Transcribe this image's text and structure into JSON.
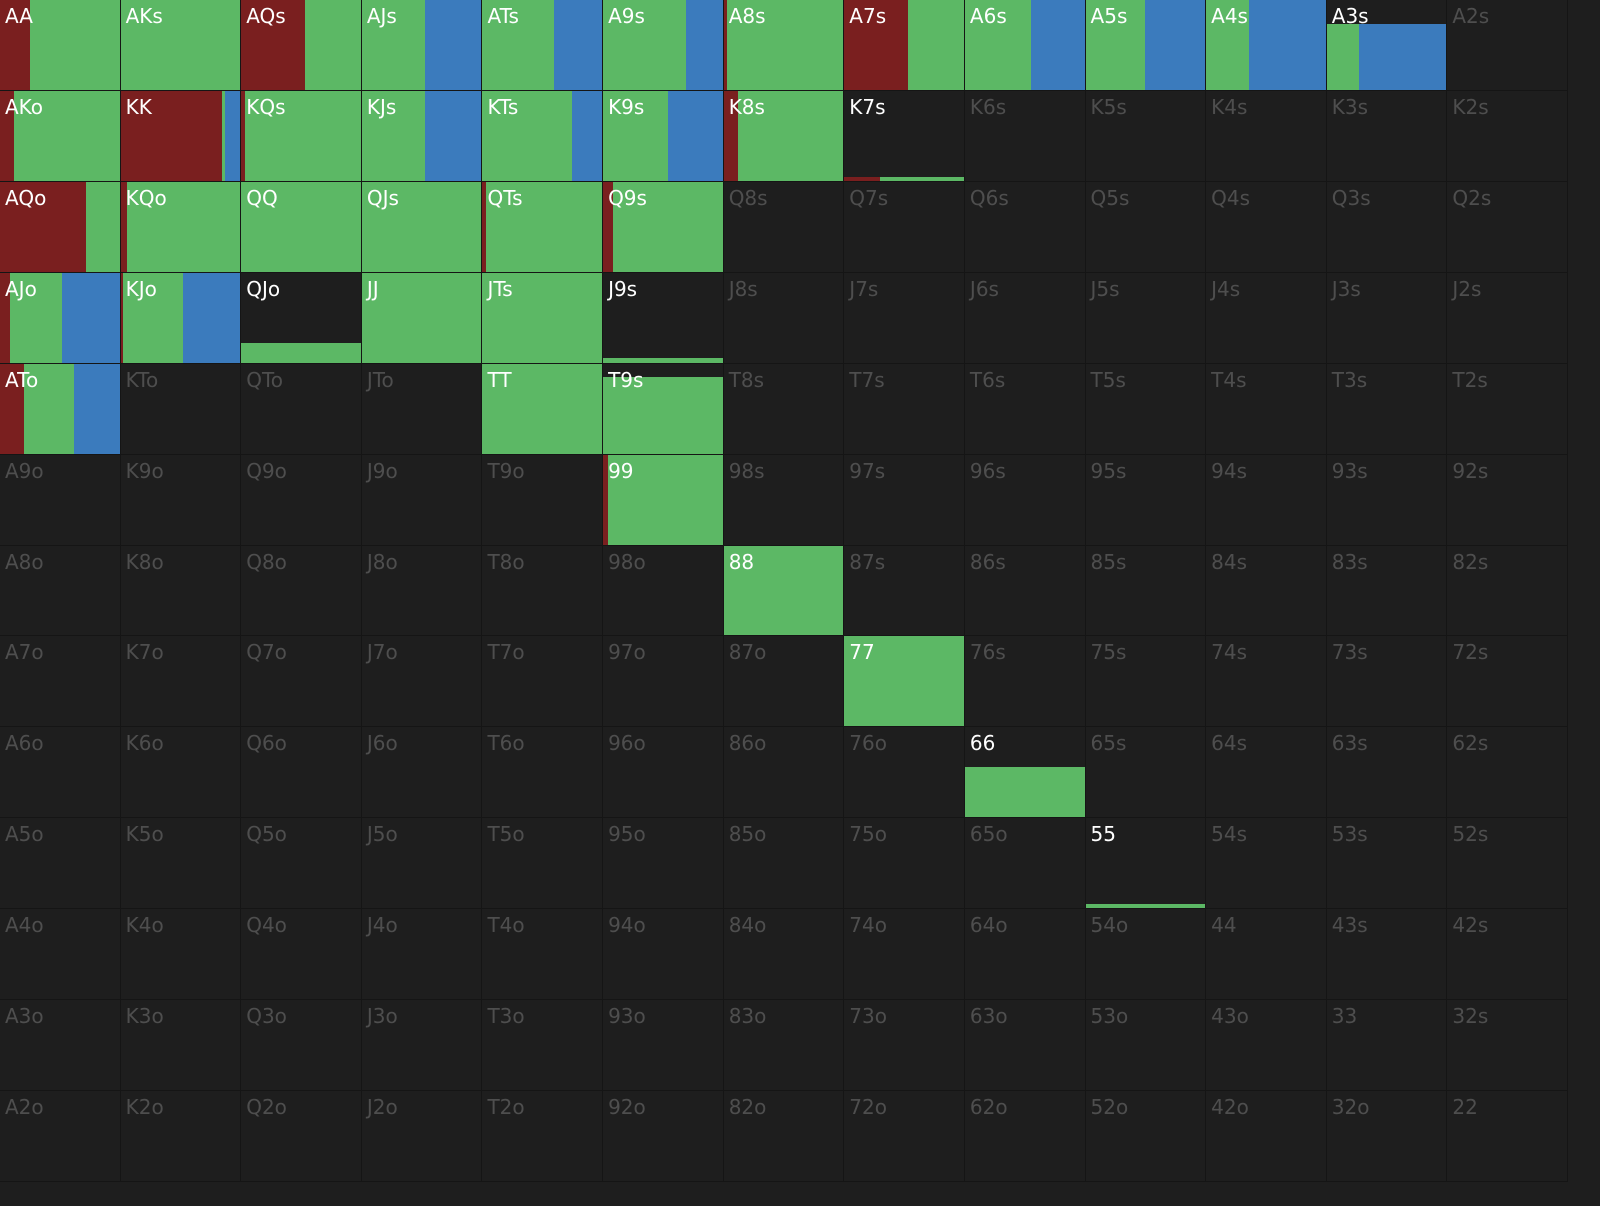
{
  "colors": {
    "raise": "#7a1f1f",
    "call": "#5cb865",
    "allin": "#3b7bbd",
    "empty": "#1e1e1e",
    "active_label": "#ffffff",
    "inactive_label": "#4e4e4e"
  },
  "ranks": [
    "A",
    "K",
    "Q",
    "J",
    "T",
    "9",
    "8",
    "7",
    "6",
    "5",
    "4",
    "3",
    "2"
  ],
  "hands": [
    {
      "label": "AA",
      "freq": 1,
      "mix": [
        0.25,
        0.75,
        0
      ]
    },
    {
      "label": "AKs",
      "freq": 1,
      "mix": [
        0,
        1,
        0
      ]
    },
    {
      "label": "AQs",
      "freq": 1,
      "mix": [
        0.53,
        0.47,
        0
      ]
    },
    {
      "label": "AJs",
      "freq": 1,
      "mix": [
        0,
        0.53,
        0.47
      ]
    },
    {
      "label": "ATs",
      "freq": 1,
      "mix": [
        0,
        0.6,
        0.4
      ]
    },
    {
      "label": "A9s",
      "freq": 1,
      "mix": [
        0,
        0.69,
        0.31
      ]
    },
    {
      "label": "A8s",
      "freq": 1,
      "mix": [
        0.03,
        0.97,
        0
      ]
    },
    {
      "label": "A7s",
      "freq": 1,
      "mix": [
        0.53,
        0.47,
        0
      ]
    },
    {
      "label": "A6s",
      "freq": 1,
      "mix": [
        0,
        0.55,
        0.45
      ]
    },
    {
      "label": "A5s",
      "freq": 1,
      "mix": [
        0,
        0.5,
        0.5
      ]
    },
    {
      "label": "A4s",
      "freq": 1,
      "mix": [
        0,
        0.36,
        0.64
      ]
    },
    {
      "label": "A3s",
      "freq": 0.73,
      "mix": [
        0,
        0.27,
        0.73
      ]
    },
    {
      "label": "A2s",
      "freq": 0,
      "mix": [
        0,
        0,
        0
      ]
    },
    {
      "label": "AKo",
      "freq": 1,
      "mix": [
        0.12,
        0.88,
        0
      ]
    },
    {
      "label": "KK",
      "freq": 1,
      "mix": [
        0.85,
        0.02,
        0.13
      ]
    },
    {
      "label": "KQs",
      "freq": 1,
      "mix": [
        0.03,
        0.97,
        0
      ]
    },
    {
      "label": "KJs",
      "freq": 1,
      "mix": [
        0,
        0.53,
        0.47
      ]
    },
    {
      "label": "KTs",
      "freq": 1,
      "mix": [
        0,
        0.75,
        0.25
      ]
    },
    {
      "label": "K9s",
      "freq": 1,
      "mix": [
        0,
        0.54,
        0.46
      ]
    },
    {
      "label": "K8s",
      "freq": 1,
      "mix": [
        0.12,
        0.88,
        0
      ]
    },
    {
      "label": "K7s",
      "freq": 0.04,
      "mix": [
        0.3,
        0.7,
        0
      ]
    },
    {
      "label": "K6s",
      "freq": 0,
      "mix": [
        0,
        0,
        0
      ]
    },
    {
      "label": "K5s",
      "freq": 0,
      "mix": [
        0,
        0,
        0
      ]
    },
    {
      "label": "K4s",
      "freq": 0,
      "mix": [
        0,
        0,
        0
      ]
    },
    {
      "label": "K3s",
      "freq": 0,
      "mix": [
        0,
        0,
        0
      ]
    },
    {
      "label": "K2s",
      "freq": 0,
      "mix": [
        0,
        0,
        0
      ]
    },
    {
      "label": "AQo",
      "freq": 1,
      "mix": [
        0.72,
        0.28,
        0
      ]
    },
    {
      "label": "KQo",
      "freq": 1,
      "mix": [
        0.05,
        0.95,
        0
      ]
    },
    {
      "label": "QQ",
      "freq": 1,
      "mix": [
        0,
        1,
        0
      ]
    },
    {
      "label": "QJs",
      "freq": 1,
      "mix": [
        0,
        1,
        0
      ]
    },
    {
      "label": "QTs",
      "freq": 1,
      "mix": [
        0.03,
        0.97,
        0
      ]
    },
    {
      "label": "Q9s",
      "freq": 1,
      "mix": [
        0.08,
        0.92,
        0
      ]
    },
    {
      "label": "Q8s",
      "freq": 0,
      "mix": [
        0,
        0,
        0
      ]
    },
    {
      "label": "Q7s",
      "freq": 0,
      "mix": [
        0,
        0,
        0
      ]
    },
    {
      "label": "Q6s",
      "freq": 0,
      "mix": [
        0,
        0,
        0
      ]
    },
    {
      "label": "Q5s",
      "freq": 0,
      "mix": [
        0,
        0,
        0
      ]
    },
    {
      "label": "Q4s",
      "freq": 0,
      "mix": [
        0,
        0,
        0
      ]
    },
    {
      "label": "Q3s",
      "freq": 0,
      "mix": [
        0,
        0,
        0
      ]
    },
    {
      "label": "Q2s",
      "freq": 0,
      "mix": [
        0,
        0,
        0
      ]
    },
    {
      "label": "AJo",
      "freq": 1,
      "mix": [
        0.08,
        0.44,
        0.48
      ]
    },
    {
      "label": "KJo",
      "freq": 1,
      "mix": [
        0.02,
        0.5,
        0.48
      ]
    },
    {
      "label": "QJo",
      "freq": 0.22,
      "mix": [
        0,
        1,
        0
      ]
    },
    {
      "label": "JJ",
      "freq": 1,
      "mix": [
        0,
        1,
        0
      ]
    },
    {
      "label": "JTs",
      "freq": 1,
      "mix": [
        0,
        1,
        0
      ]
    },
    {
      "label": "J9s",
      "freq": 0.05,
      "mix": [
        0,
        1,
        0
      ]
    },
    {
      "label": "J8s",
      "freq": 0,
      "mix": [
        0,
        0,
        0
      ]
    },
    {
      "label": "J7s",
      "freq": 0,
      "mix": [
        0,
        0,
        0
      ]
    },
    {
      "label": "J6s",
      "freq": 0,
      "mix": [
        0,
        0,
        0
      ]
    },
    {
      "label": "J5s",
      "freq": 0,
      "mix": [
        0,
        0,
        0
      ]
    },
    {
      "label": "J4s",
      "freq": 0,
      "mix": [
        0,
        0,
        0
      ]
    },
    {
      "label": "J3s",
      "freq": 0,
      "mix": [
        0,
        0,
        0
      ]
    },
    {
      "label": "J2s",
      "freq": 0,
      "mix": [
        0,
        0,
        0
      ]
    },
    {
      "label": "ATo",
      "freq": 1,
      "mix": [
        0.2,
        0.42,
        0.38
      ]
    },
    {
      "label": "KTo",
      "freq": 0,
      "mix": [
        0,
        0,
        0
      ]
    },
    {
      "label": "QTo",
      "freq": 0,
      "mix": [
        0,
        0,
        0
      ]
    },
    {
      "label": "JTo",
      "freq": 0,
      "mix": [
        0,
        0,
        0
      ]
    },
    {
      "label": "TT",
      "freq": 1,
      "mix": [
        0,
        1,
        0
      ]
    },
    {
      "label": "T9s",
      "freq": 0.85,
      "mix": [
        0,
        1,
        0
      ]
    },
    {
      "label": "T8s",
      "freq": 0,
      "mix": [
        0,
        0,
        0
      ]
    },
    {
      "label": "T7s",
      "freq": 0,
      "mix": [
        0,
        0,
        0
      ]
    },
    {
      "label": "T6s",
      "freq": 0,
      "mix": [
        0,
        0,
        0
      ]
    },
    {
      "label": "T5s",
      "freq": 0,
      "mix": [
        0,
        0,
        0
      ]
    },
    {
      "label": "T4s",
      "freq": 0,
      "mix": [
        0,
        0,
        0
      ]
    },
    {
      "label": "T3s",
      "freq": 0,
      "mix": [
        0,
        0,
        0
      ]
    },
    {
      "label": "T2s",
      "freq": 0,
      "mix": [
        0,
        0,
        0
      ]
    },
    {
      "label": "A9o",
      "freq": 0,
      "mix": [
        0,
        0,
        0
      ]
    },
    {
      "label": "K9o",
      "freq": 0,
      "mix": [
        0,
        0,
        0
      ]
    },
    {
      "label": "Q9o",
      "freq": 0,
      "mix": [
        0,
        0,
        0
      ]
    },
    {
      "label": "J9o",
      "freq": 0,
      "mix": [
        0,
        0,
        0
      ]
    },
    {
      "label": "T9o",
      "freq": 0,
      "mix": [
        0,
        0,
        0
      ]
    },
    {
      "label": "99",
      "freq": 1,
      "mix": [
        0.04,
        0.96,
        0
      ]
    },
    {
      "label": "98s",
      "freq": 0,
      "mix": [
        0,
        0,
        0
      ]
    },
    {
      "label": "97s",
      "freq": 0,
      "mix": [
        0,
        0,
        0
      ]
    },
    {
      "label": "96s",
      "freq": 0,
      "mix": [
        0,
        0,
        0
      ]
    },
    {
      "label": "95s",
      "freq": 0,
      "mix": [
        0,
        0,
        0
      ]
    },
    {
      "label": "94s",
      "freq": 0,
      "mix": [
        0,
        0,
        0
      ]
    },
    {
      "label": "93s",
      "freq": 0,
      "mix": [
        0,
        0,
        0
      ]
    },
    {
      "label": "92s",
      "freq": 0,
      "mix": [
        0,
        0,
        0
      ]
    },
    {
      "label": "A8o",
      "freq": 0,
      "mix": [
        0,
        0,
        0
      ]
    },
    {
      "label": "K8o",
      "freq": 0,
      "mix": [
        0,
        0,
        0
      ]
    },
    {
      "label": "Q8o",
      "freq": 0,
      "mix": [
        0,
        0,
        0
      ]
    },
    {
      "label": "J8o",
      "freq": 0,
      "mix": [
        0,
        0,
        0
      ]
    },
    {
      "label": "T8o",
      "freq": 0,
      "mix": [
        0,
        0,
        0
      ]
    },
    {
      "label": "98o",
      "freq": 0,
      "mix": [
        0,
        0,
        0
      ]
    },
    {
      "label": "88",
      "freq": 1,
      "mix": [
        0,
        1,
        0
      ]
    },
    {
      "label": "87s",
      "freq": 0,
      "mix": [
        0,
        0,
        0
      ]
    },
    {
      "label": "86s",
      "freq": 0,
      "mix": [
        0,
        0,
        0
      ]
    },
    {
      "label": "85s",
      "freq": 0,
      "mix": [
        0,
        0,
        0
      ]
    },
    {
      "label": "84s",
      "freq": 0,
      "mix": [
        0,
        0,
        0
      ]
    },
    {
      "label": "83s",
      "freq": 0,
      "mix": [
        0,
        0,
        0
      ]
    },
    {
      "label": "82s",
      "freq": 0,
      "mix": [
        0,
        0,
        0
      ]
    },
    {
      "label": "A7o",
      "freq": 0,
      "mix": [
        0,
        0,
        0
      ]
    },
    {
      "label": "K7o",
      "freq": 0,
      "mix": [
        0,
        0,
        0
      ]
    },
    {
      "label": "Q7o",
      "freq": 0,
      "mix": [
        0,
        0,
        0
      ]
    },
    {
      "label": "J7o",
      "freq": 0,
      "mix": [
        0,
        0,
        0
      ]
    },
    {
      "label": "T7o",
      "freq": 0,
      "mix": [
        0,
        0,
        0
      ]
    },
    {
      "label": "97o",
      "freq": 0,
      "mix": [
        0,
        0,
        0
      ]
    },
    {
      "label": "87o",
      "freq": 0,
      "mix": [
        0,
        0,
        0
      ]
    },
    {
      "label": "77",
      "freq": 1,
      "mix": [
        0,
        1,
        0
      ]
    },
    {
      "label": "76s",
      "freq": 0,
      "mix": [
        0,
        0,
        0
      ]
    },
    {
      "label": "75s",
      "freq": 0,
      "mix": [
        0,
        0,
        0
      ]
    },
    {
      "label": "74s",
      "freq": 0,
      "mix": [
        0,
        0,
        0
      ]
    },
    {
      "label": "73s",
      "freq": 0,
      "mix": [
        0,
        0,
        0
      ]
    },
    {
      "label": "72s",
      "freq": 0,
      "mix": [
        0,
        0,
        0
      ]
    },
    {
      "label": "A6o",
      "freq": 0,
      "mix": [
        0,
        0,
        0
      ]
    },
    {
      "label": "K6o",
      "freq": 0,
      "mix": [
        0,
        0,
        0
      ]
    },
    {
      "label": "Q6o",
      "freq": 0,
      "mix": [
        0,
        0,
        0
      ]
    },
    {
      "label": "J6o",
      "freq": 0,
      "mix": [
        0,
        0,
        0
      ]
    },
    {
      "label": "T6o",
      "freq": 0,
      "mix": [
        0,
        0,
        0
      ]
    },
    {
      "label": "96o",
      "freq": 0,
      "mix": [
        0,
        0,
        0
      ]
    },
    {
      "label": "86o",
      "freq": 0,
      "mix": [
        0,
        0,
        0
      ]
    },
    {
      "label": "76o",
      "freq": 0,
      "mix": [
        0,
        0,
        0
      ]
    },
    {
      "label": "66",
      "freq": 0.56,
      "mix": [
        0,
        1,
        0
      ]
    },
    {
      "label": "65s",
      "freq": 0,
      "mix": [
        0,
        0,
        0
      ]
    },
    {
      "label": "64s",
      "freq": 0,
      "mix": [
        0,
        0,
        0
      ]
    },
    {
      "label": "63s",
      "freq": 0,
      "mix": [
        0,
        0,
        0
      ]
    },
    {
      "label": "62s",
      "freq": 0,
      "mix": [
        0,
        0,
        0
      ]
    },
    {
      "label": "A5o",
      "freq": 0,
      "mix": [
        0,
        0,
        0
      ]
    },
    {
      "label": "K5o",
      "freq": 0,
      "mix": [
        0,
        0,
        0
      ]
    },
    {
      "label": "Q5o",
      "freq": 0,
      "mix": [
        0,
        0,
        0
      ]
    },
    {
      "label": "J5o",
      "freq": 0,
      "mix": [
        0,
        0,
        0
      ]
    },
    {
      "label": "T5o",
      "freq": 0,
      "mix": [
        0,
        0,
        0
      ]
    },
    {
      "label": "95o",
      "freq": 0,
      "mix": [
        0,
        0,
        0
      ]
    },
    {
      "label": "85o",
      "freq": 0,
      "mix": [
        0,
        0,
        0
      ]
    },
    {
      "label": "75o",
      "freq": 0,
      "mix": [
        0,
        0,
        0
      ]
    },
    {
      "label": "65o",
      "freq": 0,
      "mix": [
        0,
        0,
        0
      ]
    },
    {
      "label": "55",
      "freq": 0.05,
      "mix": [
        0,
        1,
        0
      ]
    },
    {
      "label": "54s",
      "freq": 0,
      "mix": [
        0,
        0,
        0
      ]
    },
    {
      "label": "53s",
      "freq": 0,
      "mix": [
        0,
        0,
        0
      ]
    },
    {
      "label": "52s",
      "freq": 0,
      "mix": [
        0,
        0,
        0
      ]
    },
    {
      "label": "A4o",
      "freq": 0,
      "mix": [
        0,
        0,
        0
      ]
    },
    {
      "label": "K4o",
      "freq": 0,
      "mix": [
        0,
        0,
        0
      ]
    },
    {
      "label": "Q4o",
      "freq": 0,
      "mix": [
        0,
        0,
        0
      ]
    },
    {
      "label": "J4o",
      "freq": 0,
      "mix": [
        0,
        0,
        0
      ]
    },
    {
      "label": "T4o",
      "freq": 0,
      "mix": [
        0,
        0,
        0
      ]
    },
    {
      "label": "94o",
      "freq": 0,
      "mix": [
        0,
        0,
        0
      ]
    },
    {
      "label": "84o",
      "freq": 0,
      "mix": [
        0,
        0,
        0
      ]
    },
    {
      "label": "74o",
      "freq": 0,
      "mix": [
        0,
        0,
        0
      ]
    },
    {
      "label": "64o",
      "freq": 0,
      "mix": [
        0,
        0,
        0
      ]
    },
    {
      "label": "54o",
      "freq": 0,
      "mix": [
        0,
        0,
        0
      ]
    },
    {
      "label": "44",
      "freq": 0,
      "mix": [
        0,
        0,
        0
      ]
    },
    {
      "label": "43s",
      "freq": 0,
      "mix": [
        0,
        0,
        0
      ]
    },
    {
      "label": "42s",
      "freq": 0,
      "mix": [
        0,
        0,
        0
      ]
    },
    {
      "label": "A3o",
      "freq": 0,
      "mix": [
        0,
        0,
        0
      ]
    },
    {
      "label": "K3o",
      "freq": 0,
      "mix": [
        0,
        0,
        0
      ]
    },
    {
      "label": "Q3o",
      "freq": 0,
      "mix": [
        0,
        0,
        0
      ]
    },
    {
      "label": "J3o",
      "freq": 0,
      "mix": [
        0,
        0,
        0
      ]
    },
    {
      "label": "T3o",
      "freq": 0,
      "mix": [
        0,
        0,
        0
      ]
    },
    {
      "label": "93o",
      "freq": 0,
      "mix": [
        0,
        0,
        0
      ]
    },
    {
      "label": "83o",
      "freq": 0,
      "mix": [
        0,
        0,
        0
      ]
    },
    {
      "label": "73o",
      "freq": 0,
      "mix": [
        0,
        0,
        0
      ]
    },
    {
      "label": "63o",
      "freq": 0,
      "mix": [
        0,
        0,
        0
      ]
    },
    {
      "label": "53o",
      "freq": 0,
      "mix": [
        0,
        0,
        0
      ]
    },
    {
      "label": "43o",
      "freq": 0,
      "mix": [
        0,
        0,
        0
      ]
    },
    {
      "label": "33",
      "freq": 0,
      "mix": [
        0,
        0,
        0
      ]
    },
    {
      "label": "32s",
      "freq": 0,
      "mix": [
        0,
        0,
        0
      ]
    },
    {
      "label": "A2o",
      "freq": 0,
      "mix": [
        0,
        0,
        0
      ]
    },
    {
      "label": "K2o",
      "freq": 0,
      "mix": [
        0,
        0,
        0
      ]
    },
    {
      "label": "Q2o",
      "freq": 0,
      "mix": [
        0,
        0,
        0
      ]
    },
    {
      "label": "J2o",
      "freq": 0,
      "mix": [
        0,
        0,
        0
      ]
    },
    {
      "label": "T2o",
      "freq": 0,
      "mix": [
        0,
        0,
        0
      ]
    },
    {
      "label": "92o",
      "freq": 0,
      "mix": [
        0,
        0,
        0
      ]
    },
    {
      "label": "82o",
      "freq": 0,
      "mix": [
        0,
        0,
        0
      ]
    },
    {
      "label": "72o",
      "freq": 0,
      "mix": [
        0,
        0,
        0
      ]
    },
    {
      "label": "62o",
      "freq": 0,
      "mix": [
        0,
        0,
        0
      ]
    },
    {
      "label": "52o",
      "freq": 0,
      "mix": [
        0,
        0,
        0
      ]
    },
    {
      "label": "42o",
      "freq": 0,
      "mix": [
        0,
        0,
        0
      ]
    },
    {
      "label": "32o",
      "freq": 0,
      "mix": [
        0,
        0,
        0
      ]
    },
    {
      "label": "22",
      "freq": 0,
      "mix": [
        0,
        0,
        0
      ]
    }
  ]
}
